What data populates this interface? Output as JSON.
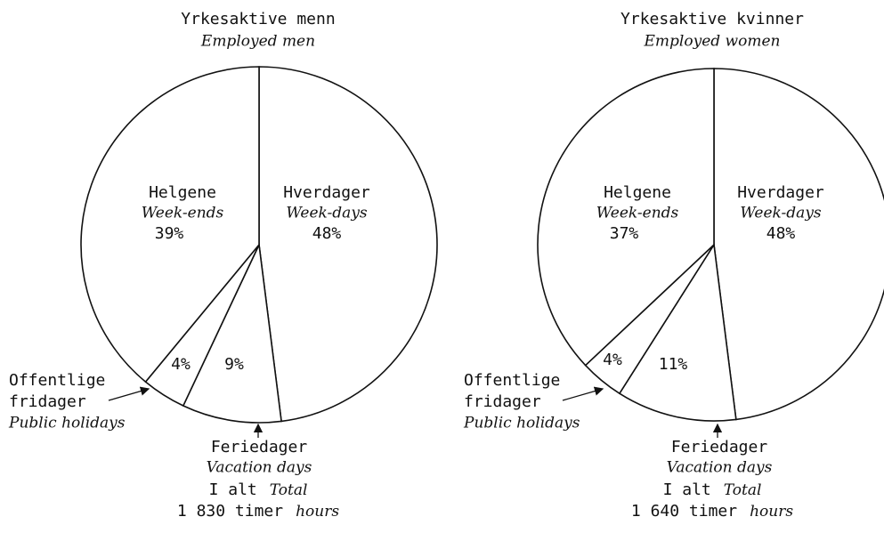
{
  "chart_data": [
    {
      "type": "pie",
      "title": "Yrkesaktive menn",
      "subtitle": "Employed men",
      "categories": [
        "Hverdager",
        "Feriedager",
        "Offentlige fridager",
        "Helgene"
      ],
      "categories_en": [
        "Week-days",
        "Vacation days",
        "Public holidays",
        "Week-ends"
      ],
      "values": [
        48,
        9,
        4,
        39
      ],
      "value_labels": [
        "48%",
        "9%",
        "4%",
        "39%"
      ],
      "total_label": "I alt",
      "total_label_en": "Total",
      "total_text": "1 830 timer",
      "total_unit_en": "hours"
    },
    {
      "type": "pie",
      "title": "Yrkesaktive kvinner",
      "subtitle": "Employed women",
      "categories": [
        "Hverdager",
        "Feriedager",
        "Offentlige fridager",
        "Helgene"
      ],
      "categories_en": [
        "Week-days",
        "Vacation days",
        "Public holidays",
        "Week-ends"
      ],
      "values": [
        48,
        11,
        4,
        37
      ],
      "value_labels": [
        "48%",
        "11%",
        "4%",
        "37%"
      ],
      "total_label": "I alt",
      "total_label_en": "Total",
      "total_text": "1 640 timer",
      "total_unit_en": "hours"
    }
  ]
}
